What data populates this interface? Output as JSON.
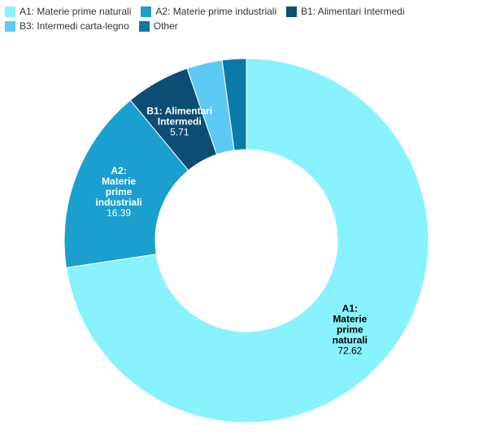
{
  "chart_data": {
    "type": "pie",
    "variant": "donut",
    "legend_position": "top-left",
    "slices": [
      {
        "name": "A1: Materie prime naturali",
        "value": 72.62,
        "color": "#88f3ff",
        "label_lines": [
          "A1:",
          "Materie",
          "prime",
          "naturali"
        ],
        "value_label": "72.62",
        "label_color": "#000000",
        "show_label": true
      },
      {
        "name": "A2: Materie prime industriali",
        "value": 16.39,
        "color": "#1b9fcf",
        "label_lines": [
          "A2:",
          "Materie",
          "prime",
          "industriali"
        ],
        "value_label": "16.39",
        "label_color": "#ffffff",
        "show_label": true
      },
      {
        "name": "B1: Alimentari Intermedi",
        "value": 5.71,
        "color": "#0b4d73",
        "label_lines": [
          "B1: Alimentari",
          "Intermedi"
        ],
        "value_label": "5.71",
        "label_color": "#ffffff",
        "show_label": true
      },
      {
        "name": "B3: Intermedi carta-legno",
        "value": 3.15,
        "color": "#5ccaf5",
        "show_label": false
      },
      {
        "name": "Other",
        "value": 2.13,
        "color": "#0a7aa8",
        "show_label": false
      }
    ]
  }
}
